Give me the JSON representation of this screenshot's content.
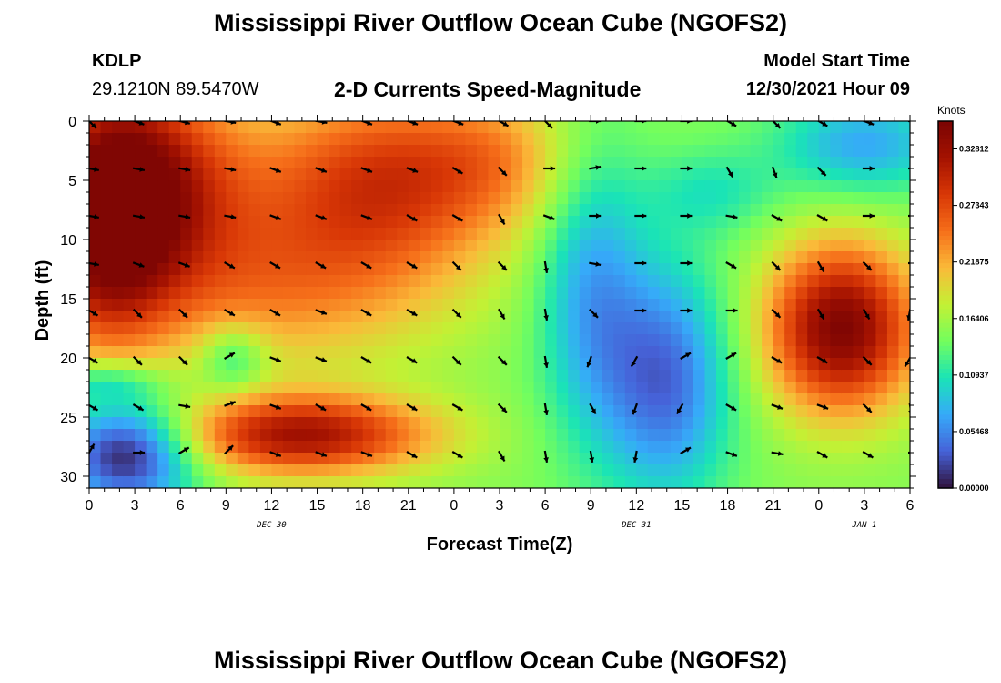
{
  "header": {
    "title": "Mississippi River Outflow Ocean Cube (NGOFS2)",
    "station": "KDLP",
    "coords": "29.1210N  89.5470W",
    "subtitle": "2-D Currents Speed-Magnitude",
    "model_start_label": "Model Start Time",
    "model_start_value": "12/30/2021 Hour 09"
  },
  "footer": {
    "title": "Mississippi River Outflow Ocean Cube (NGOFS2)"
  },
  "chart_data": {
    "type": "heatmap",
    "title": "2-D Currents Speed-Magnitude",
    "xlabel": "Forecast Time(Z)",
    "ylabel": "Depth (ft)",
    "x_tick_labels": [
      "0",
      "3",
      "6",
      "9",
      "12",
      "15",
      "18",
      "21",
      "0",
      "3",
      "6",
      "9",
      "12",
      "15",
      "18",
      "21",
      "0",
      "3",
      "6"
    ],
    "x_range_hours": [
      0,
      54
    ],
    "date_labels": [
      {
        "text": "DEC 30",
        "hour": 12
      },
      {
        "text": "DEC 31",
        "hour": 36
      },
      {
        "text": "JAN 1",
        "hour": 51
      }
    ],
    "y_ticks": [
      0,
      5,
      10,
      15,
      20,
      25,
      30
    ],
    "y_range": [
      0,
      31
    ],
    "y_inverted": true,
    "colorbar": {
      "label": "Knots",
      "ticks": [
        "0.32812",
        "0.27343",
        "0.21875",
        "0.16406",
        "0.10937",
        "0.05468",
        "0.00000"
      ],
      "range": [
        0.0,
        0.355
      ],
      "colormap": "turbo"
    },
    "speed_field_description_knots": {
      "note": "approximate smoothed field; hot cores at upper-left, mid-bottom and right-middle"
    },
    "vector_columns_hours": [
      0,
      3,
      6,
      9,
      12,
      15,
      18,
      21,
      24,
      27,
      30,
      33,
      36,
      39,
      42,
      45,
      48,
      51,
      54
    ],
    "vector_rows_ft": [
      0,
      4,
      8,
      12,
      16,
      20,
      24,
      28
    ],
    "vectors_deg_from_east_clockwise": [
      [
        45,
        20,
        15,
        10,
        20,
        10,
        20,
        20,
        20,
        30,
        45,
        0,
        0,
        0,
        30,
        45,
        30,
        20,
        0
      ],
      [
        10,
        10,
        10,
        10,
        20,
        20,
        20,
        20,
        30,
        45,
        0,
        -10,
        0,
        0,
        60,
        70,
        45,
        0,
        0
      ],
      [
        10,
        10,
        10,
        10,
        20,
        20,
        20,
        30,
        30,
        60,
        20,
        0,
        0,
        0,
        10,
        30,
        30,
        0,
        0
      ],
      [
        10,
        20,
        20,
        30,
        30,
        30,
        30,
        30,
        45,
        45,
        80,
        10,
        0,
        0,
        30,
        45,
        60,
        45,
        0
      ],
      [
        30,
        45,
        45,
        30,
        30,
        20,
        30,
        30,
        45,
        60,
        80,
        45,
        0,
        0,
        0,
        45,
        60,
        60,
        100
      ],
      [
        30,
        45,
        45,
        -30,
        20,
        20,
        30,
        30,
        45,
        45,
        80,
        -250,
        -240,
        -30,
        -30,
        30,
        30,
        45,
        120
      ],
      [
        30,
        30,
        10,
        -20,
        20,
        30,
        30,
        30,
        30,
        45,
        80,
        60,
        -250,
        -240,
        30,
        20,
        20,
        45,
        80
      ],
      [
        -60,
        0,
        -30,
        -45,
        20,
        20,
        20,
        30,
        30,
        60,
        80,
        80,
        -260,
        -30,
        20,
        10,
        30,
        30,
        0
      ]
    ]
  }
}
